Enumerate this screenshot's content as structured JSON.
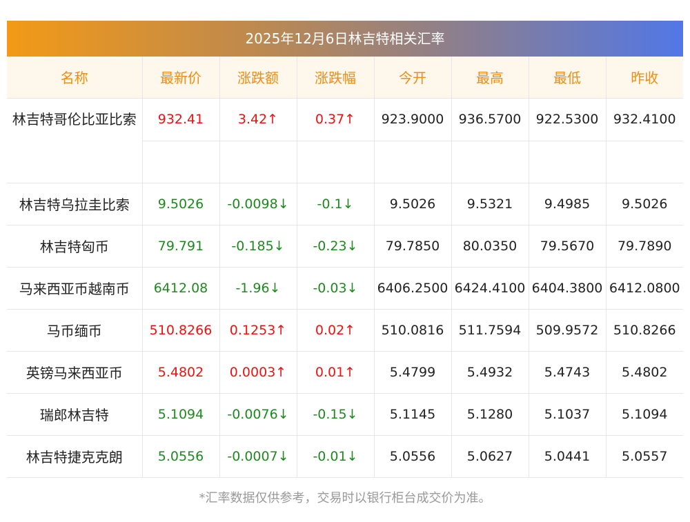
{
  "title": "2025年12月6日林吉特相关汇率",
  "headers": [
    "名称",
    "最新价",
    "涨跌额",
    "涨跌幅",
    "今开",
    "最高",
    "最低",
    "昨收"
  ],
  "rows": [
    {
      "name": "林吉特哥伦比亚比索",
      "latest": "932.41",
      "change": "3.42↑",
      "pct": "0.37↑",
      "open": "923.9000",
      "high": "936.5700",
      "low": "922.5300",
      "prev": "932.4100",
      "dir": "up"
    },
    {
      "name": "林吉特乌拉圭比索",
      "latest": "9.5026",
      "change": "-0.0098↓",
      "pct": "-0.1↓",
      "open": "9.5026",
      "high": "9.5321",
      "low": "9.4985",
      "prev": "9.5026",
      "dir": "down"
    },
    {
      "name": "林吉特匈币",
      "latest": "79.791",
      "change": "-0.185↓",
      "pct": "-0.23↓",
      "open": "79.7850",
      "high": "80.0350",
      "low": "79.5670",
      "prev": "79.7890",
      "dir": "down"
    },
    {
      "name": "马来西亚币越南币",
      "latest": "6412.08",
      "change": "-1.96↓",
      "pct": "-0.03↓",
      "open": "6406.2500",
      "high": "6424.4100",
      "low": "6404.3800",
      "prev": "6412.0800",
      "dir": "down"
    },
    {
      "name": "马币缅币",
      "latest": "510.8266",
      "change": "0.1253↑",
      "pct": "0.02↑",
      "open": "510.0816",
      "high": "511.7594",
      "low": "509.9572",
      "prev": "510.8266",
      "dir": "up"
    },
    {
      "name": "英镑马来西亚币",
      "latest": "5.4802",
      "change": "0.0003↑",
      "pct": "0.01↑",
      "open": "5.4799",
      "high": "5.4932",
      "low": "5.4743",
      "prev": "5.4802",
      "dir": "up"
    },
    {
      "name": "瑞郎林吉特",
      "latest": "5.1094",
      "change": "-0.0076↓",
      "pct": "-0.15↓",
      "open": "5.1145",
      "high": "5.1280",
      "low": "5.1037",
      "prev": "5.1094",
      "dir": "down"
    },
    {
      "name": "林吉特捷克克朗",
      "latest": "5.0556",
      "change": "-0.0007↓",
      "pct": "-0.01↓",
      "open": "5.0556",
      "high": "5.0627",
      "low": "5.0441",
      "prev": "5.0557",
      "dir": "down"
    }
  ],
  "footnote": "*汇率数据仅供参考，交易时以银行柜台成交价为准。",
  "colors": {
    "up": "#ee1111",
    "down": "#1e8a1e",
    "header_text": "#f08c10"
  }
}
